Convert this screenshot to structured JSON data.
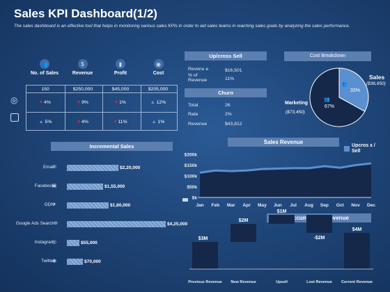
{
  "header": {
    "title": "Sales KPI Dashboard(1/2)",
    "description": "The sales dashboard is an effective tool that helps in monitoring various sales KPIs in order to aid sales teams in reaching sales goals by analyzing the sales performance."
  },
  "kpi": {
    "columns": [
      {
        "label": "No. of Sales",
        "icon": "people-icon"
      },
      {
        "label": "Revenue",
        "icon": "money-icon"
      },
      {
        "label": "Profit",
        "icon": "chart-icon"
      },
      {
        "label": "Cost",
        "icon": "coins-icon"
      }
    ],
    "totals": [
      "150",
      "$250,000",
      "$45,000",
      "$205,000"
    ],
    "rows": [
      {
        "icon": "target-icon",
        "cells": [
          {
            "v": "4%",
            "dir": "down"
          },
          {
            "v": "9%",
            "dir": "down"
          },
          {
            "v": "1%",
            "dir": "down"
          },
          {
            "v": "12%",
            "dir": "up"
          }
        ]
      },
      {
        "icon": "calendar-icon",
        "cells": [
          {
            "v": "5%",
            "dir": "up"
          },
          {
            "v": "4%",
            "dir": "down"
          },
          {
            "v": "11%",
            "dir": "down"
          },
          {
            "v": "1%",
            "dir": "up"
          }
        ]
      }
    ]
  },
  "upcross": {
    "title": "Up/cross Sell",
    "rows": [
      {
        "label": "Revenu e",
        "value": "$16,501"
      },
      {
        "label": "% of Revenue",
        "value": "11%"
      }
    ]
  },
  "churn": {
    "title": "Churn",
    "rows": [
      {
        "label": "Total",
        "value": "26"
      },
      {
        "label": "Rate",
        "value": "2%"
      },
      {
        "label": "Revenue",
        "value": "$43,812"
      }
    ]
  },
  "cost_breakdown": {
    "title": "Cost Breakdown",
    "sales_label": "Sales",
    "sales_value": "($36,650)",
    "sales_pct": "33%",
    "marketing_label": "Marketing",
    "marketing_value": "($73,450)",
    "marketing_pct": "67%",
    "colors": {
      "sales": "#5b8fd0",
      "marketing": "#15284a"
    }
  },
  "incremental_sales": {
    "title": "Incremental Sales",
    "items": [
      {
        "label": "Email",
        "value": "$2,20,000",
        "amount": 220000,
        "icon": "email-icon"
      },
      {
        "label": "Facebook",
        "value": "$1,55,000",
        "amount": 155000,
        "icon": "facebook-icon"
      },
      {
        "label": "GDN",
        "value": "$1,80,000",
        "amount": 180000,
        "icon": "network-icon"
      },
      {
        "label": "Google Ads Search",
        "value": "$4,25,000",
        "amount": 425000,
        "icon": "globe-icon"
      },
      {
        "label": "Instagram",
        "value": "$55,000",
        "amount": 55000,
        "icon": "instagram-icon"
      },
      {
        "label": "Twitter",
        "value": "$70,000",
        "amount": 70000,
        "icon": "twitter-icon"
      }
    ]
  },
  "sales_revenue": {
    "title": "Sales Revenue",
    "legend": "Upcros s / Sell",
    "y_ticks": [
      "$200k",
      "$150k",
      "$100k",
      "$50k",
      "$k"
    ]
  },
  "accumulated_revenue": {
    "title": "Accumulated Revenue",
    "steps": [
      {
        "label": "Previous Revenue",
        "value": "$3M"
      },
      {
        "label": "New Revenue",
        "value": "$2M"
      },
      {
        "label": "Upsell",
        "value": "$1M"
      },
      {
        "label": "Lost Revenue",
        "value": "-$2M"
      },
      {
        "label": "Current Revenue",
        "value": "$4M"
      }
    ]
  },
  "chart_data": [
    {
      "type": "area",
      "title": "Sales Revenue",
      "categories": [
        "Jan",
        "Feb",
        "Mar",
        "Apr",
        "May",
        "Jun",
        "Jul",
        "Aug",
        "Sep",
        "Oct",
        "Nov",
        "Dec"
      ],
      "series": [
        {
          "name": "Upcros s / Sell",
          "values": [
            115,
            125,
            122,
            125,
            132,
            134,
            136,
            136,
            145,
            138,
            150,
            158
          ]
        }
      ],
      "ylim": [
        0,
        200
      ],
      "y_ticks": [
        "$200k",
        "$150k",
        "$100k",
        "$50k",
        "$k"
      ]
    },
    {
      "type": "bar",
      "title": "Incremental Sales",
      "categories": [
        "Email",
        "Facebook",
        "GDN",
        "Google Ads Search",
        "Instagram",
        "Twitter"
      ],
      "values": [
        220000,
        155000,
        180000,
        425000,
        55000,
        70000
      ]
    },
    {
      "type": "pie",
      "title": "Cost Breakdown",
      "categories": [
        "Sales",
        "Marketing"
      ],
      "values": [
        33,
        67
      ]
    },
    {
      "type": "bar",
      "title": "Accumulated Revenue",
      "categories": [
        "Previous Revenue",
        "New Revenue",
        "Upsell",
        "Lost Revenue",
        "Current Revenue"
      ],
      "values": [
        3,
        2,
        1,
        -2,
        4
      ]
    }
  ]
}
